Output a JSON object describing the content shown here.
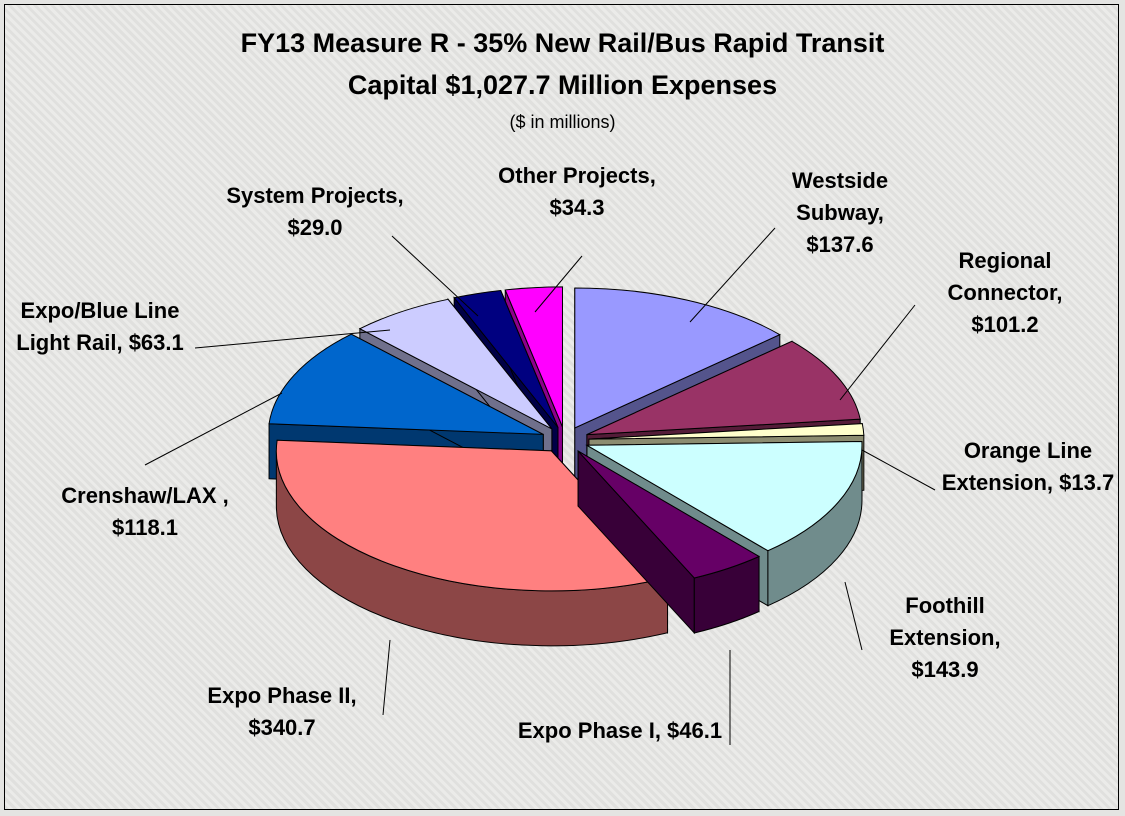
{
  "chart_data": {
    "type": "pie3d",
    "title": [
      "FY13 Measure R - 35% New Rail/Bus Rapid Transit",
      "Capital $1,027.7 Million Expenses"
    ],
    "subtitle": "($ in millions)",
    "categories": [
      "Westside Subway",
      "Regional Connector",
      "Orange Line Extension",
      "Foothill Extension",
      "Expo Phase I",
      "Expo Phase II",
      "Crenshaw/LAX",
      "Expo/Blue Line Light Rail",
      "System Projects",
      "Other Projects"
    ],
    "values": [
      137.6,
      101.2,
      13.7,
      143.9,
      46.1,
      340.7,
      118.1,
      63.1,
      29.0,
      34.3
    ],
    "value_labels": [
      ", $137.6",
      ", $101.2",
      ", $13.7",
      ", $143.9",
      ", $46.1",
      ", $340.7",
      " , $118.1",
      ", $63.1",
      ", $29.0",
      ", $34.3"
    ],
    "colors": [
      "#9999ff",
      "#993366",
      "#ffffcc",
      "#ccffff",
      "#660066",
      "#ff8080",
      "#0066cc",
      "#ccccff",
      "#000080",
      "#ff00ff"
    ]
  }
}
